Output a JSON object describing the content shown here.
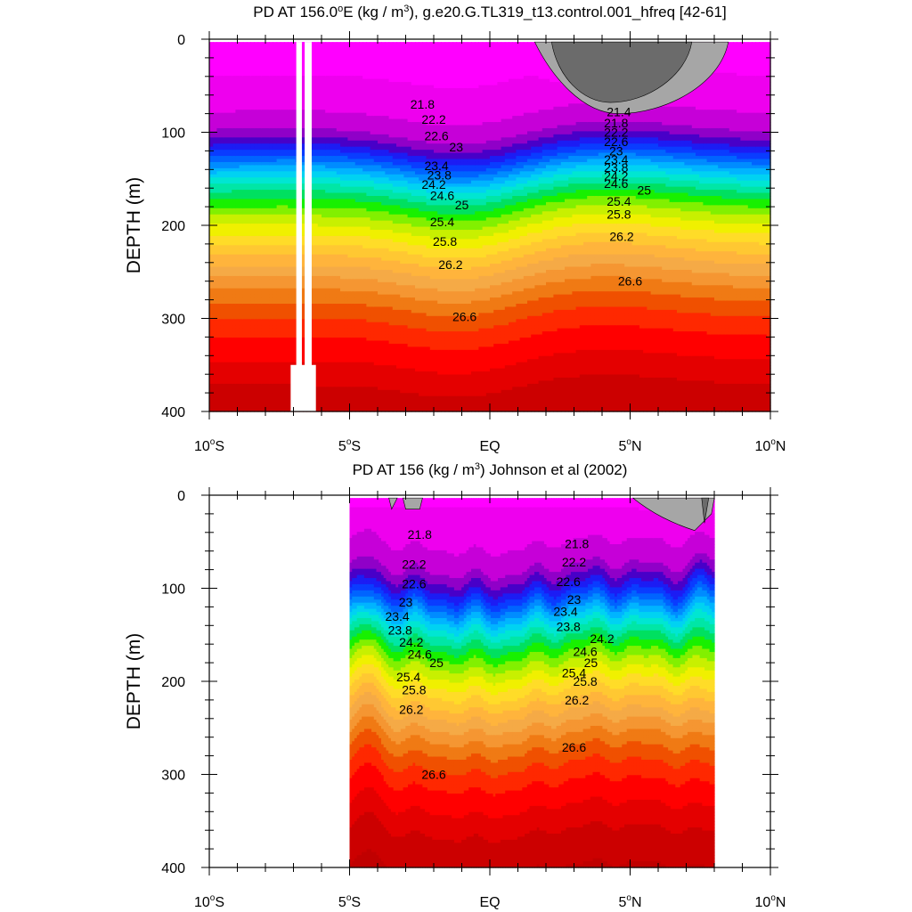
{
  "chart_data": [
    {
      "type": "contour",
      "title_prefix": "PD AT 156.0",
      "title_sup": "o",
      "title_mid": "E (kg / m",
      "title_sup2": "3",
      "title_suffix": "), g.e20.G.TL319_t13.control.001_hfreq [42-61]",
      "ylabel": "DEPTH (m)",
      "xlim": [
        -10,
        10
      ],
      "ylim": [
        0,
        400
      ],
      "data_extent_x": [
        -10,
        10
      ],
      "x_ticks": [
        {
          "v": -10,
          "num": "10",
          "sup": "o",
          "hem": "S"
        },
        {
          "v": -5,
          "num": "5",
          "sup": "o",
          "hem": "S"
        },
        {
          "v": 0,
          "num": "EQ",
          "sup": "",
          "hem": ""
        },
        {
          "v": 5,
          "num": "5",
          "sup": "o",
          "hem": "N"
        },
        {
          "v": 10,
          "num": "10",
          "sup": "o",
          "hem": "N"
        }
      ],
      "y_ticks": [
        {
          "v": 0,
          "label": "0"
        },
        {
          "v": 100,
          "label": "100"
        },
        {
          "v": 200,
          "label": "200"
        },
        {
          "v": 300,
          "label": "300"
        },
        {
          "v": 400,
          "label": "400"
        }
      ],
      "contour_labels": [
        {
          "text": "21.8",
          "x": -2.4,
          "y": 70
        },
        {
          "text": "22.2",
          "x": -2.0,
          "y": 86
        },
        {
          "text": "22.6",
          "x": -1.9,
          "y": 104
        },
        {
          "text": "23",
          "x": -1.2,
          "y": 116
        },
        {
          "text": "23.4",
          "x": -1.9,
          "y": 136
        },
        {
          "text": "23.8",
          "x": -1.8,
          "y": 146
        },
        {
          "text": "24.2",
          "x": -2.0,
          "y": 156
        },
        {
          "text": "24.6",
          "x": -1.7,
          "y": 168
        },
        {
          "text": "25",
          "x": -1.0,
          "y": 178
        },
        {
          "text": "25.4",
          "x": -1.7,
          "y": 196
        },
        {
          "text": "25.8",
          "x": -1.6,
          "y": 217
        },
        {
          "text": "26.2",
          "x": -1.4,
          "y": 242
        },
        {
          "text": "26.6",
          "x": -0.9,
          "y": 298
        },
        {
          "text": "21.4",
          "x": 4.6,
          "y": 78
        },
        {
          "text": "21.8",
          "x": 4.5,
          "y": 90
        },
        {
          "text": "22.2",
          "x": 4.5,
          "y": 100
        },
        {
          "text": "22.6",
          "x": 4.5,
          "y": 110
        },
        {
          "text": "23",
          "x": 4.5,
          "y": 120
        },
        {
          "text": "23.4",
          "x": 4.5,
          "y": 129
        },
        {
          "text": "23.8",
          "x": 4.5,
          "y": 138
        },
        {
          "text": "24.2",
          "x": 4.5,
          "y": 147
        },
        {
          "text": "24.6",
          "x": 4.5,
          "y": 155
        },
        {
          "text": "25",
          "x": 5.5,
          "y": 162
        },
        {
          "text": "25.4",
          "x": 4.6,
          "y": 174
        },
        {
          "text": "25.8",
          "x": 4.6,
          "y": 188
        },
        {
          "text": "26.2",
          "x": 4.7,
          "y": 212
        },
        {
          "text": "26.6",
          "x": 5.0,
          "y": 260
        }
      ]
    },
    {
      "type": "contour",
      "title_prefix": "PD AT 156 (kg / m",
      "title_sup": "3",
      "title_suffix": ") Johnson et al (2002)",
      "ylabel": "DEPTH (m)",
      "xlim": [
        -10,
        10
      ],
      "ylim": [
        0,
        400
      ],
      "data_extent_x": [
        -5,
        8
      ],
      "x_ticks": [
        {
          "v": -10,
          "num": "10",
          "sup": "o",
          "hem": "S"
        },
        {
          "v": -5,
          "num": "5",
          "sup": "o",
          "hem": "S"
        },
        {
          "v": 0,
          "num": "EQ",
          "sup": "",
          "hem": ""
        },
        {
          "v": 5,
          "num": "5",
          "sup": "o",
          "hem": "N"
        },
        {
          "v": 10,
          "num": "10",
          "sup": "o",
          "hem": "N"
        }
      ],
      "y_ticks": [
        {
          "v": 0,
          "label": "0"
        },
        {
          "v": 100,
          "label": "100"
        },
        {
          "v": 200,
          "label": "200"
        },
        {
          "v": 300,
          "label": "300"
        },
        {
          "v": 400,
          "label": "400"
        }
      ],
      "contour_labels": [
        {
          "text": "21.8",
          "x": -2.5,
          "y": 42
        },
        {
          "text": "22.2",
          "x": -2.7,
          "y": 74
        },
        {
          "text": "22.6",
          "x": -2.7,
          "y": 95
        },
        {
          "text": "23",
          "x": -3.0,
          "y": 115
        },
        {
          "text": "23.4",
          "x": -3.3,
          "y": 130
        },
        {
          "text": "23.8",
          "x": -3.2,
          "y": 145
        },
        {
          "text": "24.2",
          "x": -2.8,
          "y": 158
        },
        {
          "text": "24.6",
          "x": -2.5,
          "y": 171
        },
        {
          "text": "25",
          "x": -1.9,
          "y": 180
        },
        {
          "text": "25.4",
          "x": -2.9,
          "y": 195
        },
        {
          "text": "25.8",
          "x": -2.7,
          "y": 209
        },
        {
          "text": "26.2",
          "x": -2.8,
          "y": 230
        },
        {
          "text": "26.6",
          "x": -2.0,
          "y": 300
        },
        {
          "text": "21.8",
          "x": 3.1,
          "y": 52
        },
        {
          "text": "22.2",
          "x": 3.0,
          "y": 72
        },
        {
          "text": "22.6",
          "x": 2.8,
          "y": 93
        },
        {
          "text": "23",
          "x": 3.0,
          "y": 112
        },
        {
          "text": "23.4",
          "x": 2.7,
          "y": 125
        },
        {
          "text": "23.8",
          "x": 2.8,
          "y": 141
        },
        {
          "text": "24.2",
          "x": 4.0,
          "y": 154
        },
        {
          "text": "24.6",
          "x": 3.4,
          "y": 168
        },
        {
          "text": "25",
          "x": 3.6,
          "y": 180
        },
        {
          "text": "25.4",
          "x": 3.0,
          "y": 191
        },
        {
          "text": "25.8",
          "x": 3.4,
          "y": 200
        },
        {
          "text": "26.2",
          "x": 3.1,
          "y": 220
        },
        {
          "text": "26.6",
          "x": 3.0,
          "y": 271
        }
      ]
    }
  ]
}
